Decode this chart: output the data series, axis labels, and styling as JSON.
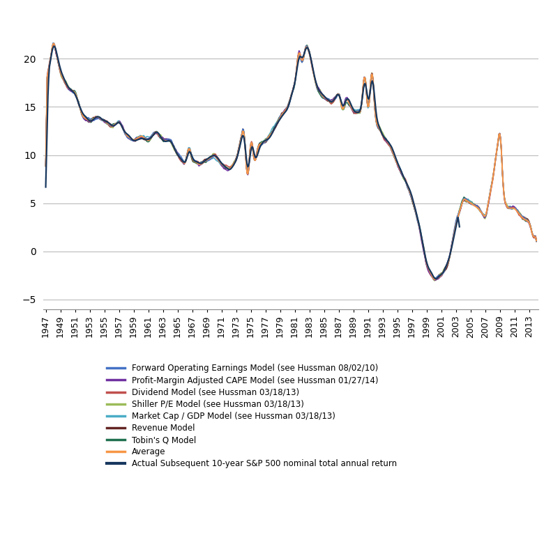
{
  "title": "",
  "ylabel": "",
  "xlabel": "",
  "xlim_start": 1947,
  "xlim_end": 2014,
  "ylim": [
    -6,
    25
  ],
  "yticks": [
    -5,
    0,
    5,
    10,
    15,
    20
  ],
  "xtick_years": [
    1947,
    1949,
    1951,
    1953,
    1955,
    1957,
    1959,
    1961,
    1963,
    1965,
    1967,
    1969,
    1971,
    1973,
    1975,
    1977,
    1979,
    1981,
    1983,
    1985,
    1987,
    1989,
    1991,
    1993,
    1995,
    1997,
    1999,
    2001,
    2003,
    2005,
    2007,
    2009,
    2011,
    2013
  ],
  "colors": {
    "forward_earnings": "#4472C4",
    "profit_margin_cape": "#7030A0",
    "dividend": "#C0504D",
    "shiller_pe": "#9BBB59",
    "market_cap_gdp": "#4BACC6",
    "revenue": "#632523",
    "tobins_q": "#1F7050",
    "average": "#F79646",
    "actual": "#17375E"
  },
  "legend_labels": [
    "Forward Operating Earnings Model (see Hussman 08/02/10)",
    "Profit-Margin Adjusted CAPE Model (see Hussman 01/27/14)",
    "Dividend Model (see Hussman 03/18/13)",
    "Shiller P/E Model (see Hussman 03/18/13)",
    "Market Cap / GDP Model (see Hussman 03/18/13)",
    "Revenue Model",
    "Tobin's Q Model",
    "Average",
    "Actual Subsequent 10-year S&P 500 nominal total annual return"
  ],
  "figsize": [
    7.8,
    7.65
  ],
  "dpi": 100
}
